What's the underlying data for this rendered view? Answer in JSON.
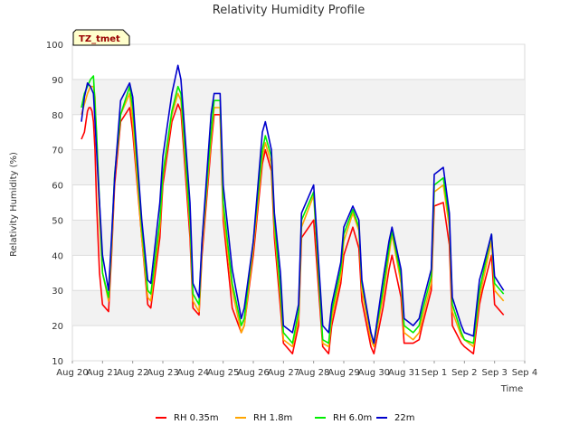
{
  "chart_data": {
    "type": "line",
    "title": "Relativity Humidity Profile",
    "xlabel": "Time",
    "ylabel": "Relativity Humidity (%)",
    "badge": "TZ_tmet",
    "ylim": [
      10,
      100
    ],
    "yticks": [
      10,
      20,
      30,
      40,
      50,
      60,
      70,
      80,
      90,
      100
    ],
    "xlim": [
      0,
      15
    ],
    "xticks": [
      "Aug 20",
      "Aug 21",
      "Aug 22",
      "Aug 23",
      "Aug 24",
      "Aug 25",
      "Aug 26",
      "Aug 27",
      "Aug 28",
      "Aug 29",
      "Aug 30",
      "Aug 31",
      "Sep 1",
      "Sep 2",
      "Sep 3",
      "Sep 4"
    ],
    "series": [
      {
        "name": "RH 0.35m",
        "color": "#ff0000",
        "x": [
          0.3,
          0.4,
          0.45,
          0.5,
          0.55,
          0.6,
          0.65,
          0.7,
          0.75,
          0.8,
          0.9,
          1.0,
          1.2,
          1.3,
          1.4,
          1.6,
          1.9,
          2.0,
          2.3,
          2.5,
          2.6,
          2.9,
          3.0,
          3.3,
          3.5,
          3.6,
          3.9,
          4.0,
          4.2,
          4.3,
          4.6,
          4.7,
          4.9,
          5.0,
          5.3,
          5.6,
          5.7,
          6.0,
          6.3,
          6.4,
          6.6,
          6.7,
          6.9,
          7.0,
          7.3,
          7.5,
          7.6,
          8.0,
          8.3,
          8.5,
          8.6,
          8.9,
          9.0,
          9.3,
          9.5,
          9.6,
          9.9,
          10.0,
          10.3,
          10.5,
          10.6,
          10.9,
          11.0,
          11.3,
          11.5,
          11.6,
          11.9,
          12.0,
          12.3,
          12.5,
          12.6,
          12.9,
          13.0,
          13.3,
          13.5,
          13.6,
          13.9,
          14.0,
          14.3
        ],
        "y": [
          73,
          75,
          78,
          81,
          82,
          82,
          81,
          78,
          70,
          55,
          35,
          26,
          24,
          40,
          60,
          78,
          82,
          75,
          45,
          26,
          25,
          45,
          60,
          78,
          83,
          81,
          45,
          25,
          23,
          40,
          71,
          80,
          80,
          50,
          25,
          18,
          20,
          40,
          66,
          70,
          64,
          45,
          25,
          15,
          12,
          20,
          45,
          50,
          14,
          12,
          20,
          32,
          40,
          48,
          42,
          27,
          14,
          12,
          25,
          36,
          40,
          28,
          15,
          15,
          16,
          20,
          30,
          54,
          55,
          43,
          20,
          15,
          14,
          12,
          26,
          30,
          40,
          26,
          23
        ]
      },
      {
        "name": "RH 1.8m",
        "color": "#ffa500",
        "x": [
          0.3,
          0.4,
          0.5,
          0.6,
          0.7,
          0.75,
          0.8,
          0.9,
          1.0,
          1.2,
          1.3,
          1.4,
          1.6,
          1.9,
          2.0,
          2.3,
          2.5,
          2.6,
          2.9,
          3.0,
          3.3,
          3.5,
          3.6,
          3.9,
          4.0,
          4.2,
          4.3,
          4.6,
          4.7,
          4.9,
          5.0,
          5.3,
          5.6,
          5.7,
          6.0,
          6.3,
          6.4,
          6.6,
          6.7,
          6.9,
          7.0,
          7.3,
          7.5,
          7.6,
          8.0,
          8.3,
          8.5,
          8.6,
          8.9,
          9.0,
          9.3,
          9.5,
          9.6,
          9.9,
          10.0,
          10.3,
          10.5,
          10.6,
          10.9,
          11.0,
          11.3,
          11.5,
          11.6,
          11.9,
          12.0,
          12.3,
          12.5,
          12.6,
          12.9,
          13.0,
          13.3,
          13.5,
          13.6,
          13.9,
          14.0,
          14.3
        ],
        "y": [
          80,
          83,
          86,
          88,
          88,
          85,
          72,
          50,
          35,
          27,
          42,
          62,
          80,
          86,
          78,
          45,
          28,
          27,
          48,
          62,
          80,
          86,
          84,
          48,
          27,
          24,
          42,
          73,
          82,
          82,
          52,
          30,
          18,
          20,
          42,
          68,
          72,
          66,
          48,
          28,
          16,
          14,
          22,
          48,
          57,
          15,
          14,
          22,
          34,
          44,
          52,
          47,
          30,
          16,
          14,
          28,
          40,
          46,
          32,
          18,
          16,
          18,
          22,
          32,
          58,
          60,
          48,
          24,
          17,
          16,
          14,
          28,
          32,
          44,
          30,
          27
        ]
      },
      {
        "name": "RH 6.0m",
        "color": "#00ee00",
        "x": [
          0.3,
          0.4,
          0.5,
          0.6,
          0.7,
          0.8,
          0.9,
          1.0,
          1.2,
          1.3,
          1.4,
          1.6,
          1.9,
          2.0,
          2.3,
          2.5,
          2.6,
          2.9,
          3.0,
          3.3,
          3.5,
          3.6,
          3.9,
          4.0,
          4.2,
          4.3,
          4.6,
          4.7,
          4.9,
          5.0,
          5.3,
          5.6,
          5.7,
          6.0,
          6.3,
          6.4,
          6.6,
          6.7,
          6.9,
          7.0,
          7.3,
          7.5,
          7.6,
          8.0,
          8.3,
          8.5,
          8.6,
          8.9,
          9.0,
          9.3,
          9.5,
          9.6,
          9.9,
          10.0,
          10.3,
          10.5,
          10.6,
          10.9,
          11.0,
          11.3,
          11.5,
          11.6,
          11.9,
          12.0,
          12.3,
          12.5,
          12.6,
          12.9,
          13.0,
          13.3,
          13.5,
          13.6,
          13.9,
          14.0,
          14.3
        ],
        "y": [
          82,
          86,
          88,
          90,
          91,
          75,
          55,
          35,
          28,
          44,
          63,
          80,
          88,
          82,
          48,
          30,
          29,
          50,
          63,
          81,
          88,
          86,
          50,
          29,
          26,
          44,
          75,
          84,
          84,
          55,
          32,
          20,
          22,
          44,
          70,
          74,
          68,
          50,
          30,
          18,
          15,
          24,
          50,
          58,
          16,
          15,
          24,
          36,
          46,
          53,
          48,
          32,
          18,
          15,
          30,
          42,
          47,
          34,
          20,
          18,
          20,
          24,
          34,
          60,
          62,
          50,
          26,
          18,
          16,
          15,
          30,
          34,
          46,
          32,
          29
        ]
      },
      {
        "name": "22m",
        "color": "#0000cc",
        "x": [
          0.3,
          0.4,
          0.5,
          0.6,
          0.7,
          0.8,
          0.9,
          1.0,
          1.2,
          1.3,
          1.4,
          1.6,
          1.9,
          2.0,
          2.3,
          2.5,
          2.6,
          2.9,
          3.0,
          3.3,
          3.5,
          3.6,
          3.9,
          4.0,
          4.2,
          4.3,
          4.6,
          4.7,
          4.9,
          5.0,
          5.3,
          5.6,
          5.7,
          6.0,
          6.3,
          6.4,
          6.6,
          6.7,
          6.9,
          7.0,
          7.3,
          7.5,
          7.6,
          8.0,
          8.3,
          8.5,
          8.6,
          8.9,
          9.0,
          9.3,
          9.5,
          9.6,
          9.9,
          10.0,
          10.3,
          10.5,
          10.6,
          10.9,
          11.0,
          11.3,
          11.5,
          11.6,
          11.9,
          12.0,
          12.3,
          12.5,
          12.6,
          12.9,
          13.0,
          13.3,
          13.5,
          13.6,
          13.9,
          14.0,
          14.3
        ],
        "y": [
          78,
          85,
          89,
          88,
          86,
          70,
          55,
          40,
          30,
          45,
          62,
          84,
          89,
          85,
          50,
          33,
          32,
          55,
          68,
          86,
          94,
          90,
          55,
          32,
          28,
          44,
          80,
          86,
          86,
          60,
          36,
          22,
          25,
          44,
          75,
          78,
          70,
          52,
          35,
          20,
          18,
          26,
          52,
          60,
          20,
          18,
          26,
          38,
          48,
          54,
          50,
          33,
          18,
          15,
          33,
          44,
          48,
          36,
          22,
          20,
          22,
          26,
          36,
          63,
          65,
          52,
          28,
          20,
          18,
          17,
          33,
          36,
          46,
          34,
          30
        ]
      }
    ]
  }
}
